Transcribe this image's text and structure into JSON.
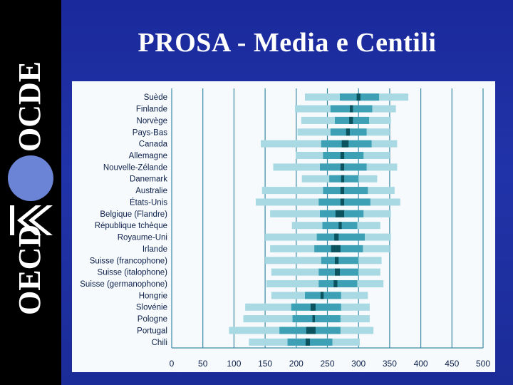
{
  "title": "PROSA - Media e Centili",
  "logo": {
    "top_word": "OCDE",
    "bottom_word": "OECD"
  },
  "colors": {
    "background": "#2133a8",
    "side_band": "#000000",
    "panel": "#f7fafc",
    "grid": "#3a8aa6",
    "p5_p95": "#a9d9e3",
    "p25_p75": "#3da0b5",
    "mean_ci": "#0c5360"
  },
  "chart_data": {
    "type": "bar",
    "orientation": "horizontal",
    "title": "",
    "xlabel": "",
    "ylabel": "",
    "xlim": [
      0,
      500
    ],
    "xticks": [
      0,
      50,
      100,
      150,
      200,
      250,
      300,
      350,
      400,
      450,
      500
    ],
    "grid": true,
    "categories": [
      "Suède",
      "Finlande",
      "Norvège",
      "Pays-Bas",
      "Canada",
      "Allemagne",
      "Nouvelle-Zélande",
      "Danemark",
      "Australie",
      "États-Unis",
      "Belgique (Flandre)",
      "République tchèque",
      "Royaume-Uni",
      "Irlande",
      "Suisse (francophone)",
      "Suisse (italophone)",
      "Suisse (germanophone)",
      "Hongrie",
      "Slovénie",
      "Pologne",
      "Portugal",
      "Chili"
    ],
    "percentiles": [
      {
        "p5": 214,
        "p25": 270,
        "mean_low": 297,
        "mean_high": 303,
        "p75": 333,
        "p95": 380
      },
      {
        "p5": 198,
        "p25": 255,
        "mean_low": 286,
        "mean_high": 291,
        "p75": 322,
        "p95": 360
      },
      {
        "p5": 208,
        "p25": 262,
        "mean_low": 285,
        "mean_high": 291,
        "p75": 317,
        "p95": 352
      },
      {
        "p5": 202,
        "p25": 255,
        "mean_low": 280,
        "mean_high": 286,
        "p75": 313,
        "p95": 350
      },
      {
        "p5": 143,
        "p25": 240,
        "mean_low": 273,
        "mean_high": 284,
        "p75": 321,
        "p95": 362
      },
      {
        "p5": 199,
        "p25": 243,
        "mean_low": 271,
        "mean_high": 277,
        "p75": 308,
        "p95": 350
      },
      {
        "p5": 163,
        "p25": 238,
        "mean_low": 271,
        "mean_high": 277,
        "p75": 313,
        "p95": 362
      },
      {
        "p5": 209,
        "p25": 253,
        "mean_low": 272,
        "mean_high": 277,
        "p75": 300,
        "p95": 330
      },
      {
        "p5": 145,
        "p25": 243,
        "mean_low": 271,
        "mean_high": 277,
        "p75": 315,
        "p95": 358
      },
      {
        "p5": 135,
        "p25": 236,
        "mean_low": 271,
        "mean_high": 277,
        "p75": 319,
        "p95": 367
      },
      {
        "p5": 158,
        "p25": 238,
        "mean_low": 263,
        "mean_high": 277,
        "p75": 308,
        "p95": 352
      },
      {
        "p5": 193,
        "p25": 242,
        "mean_low": 268,
        "mean_high": 273,
        "p75": 298,
        "p95": 335
      },
      {
        "p5": 150,
        "p25": 233,
        "mean_low": 261,
        "mean_high": 268,
        "p75": 310,
        "p95": 352
      },
      {
        "p5": 158,
        "p25": 229,
        "mean_low": 256,
        "mean_high": 271,
        "p75": 307,
        "p95": 350
      },
      {
        "p5": 150,
        "p25": 240,
        "mean_low": 262,
        "mean_high": 268,
        "p75": 300,
        "p95": 337
      },
      {
        "p5": 160,
        "p25": 236,
        "mean_low": 262,
        "mean_high": 270,
        "p75": 300,
        "p95": 335
      },
      {
        "p5": 152,
        "p25": 236,
        "mean_low": 260,
        "mean_high": 266,
        "p75": 298,
        "p95": 340
      },
      {
        "p5": 160,
        "p25": 214,
        "mean_low": 239,
        "mean_high": 244,
        "p75": 272,
        "p95": 315
      },
      {
        "p5": 118,
        "p25": 192,
        "mean_low": 223,
        "mean_high": 231,
        "p75": 272,
        "p95": 318
      },
      {
        "p5": 115,
        "p25": 194,
        "mean_low": 226,
        "mean_high": 230,
        "p75": 271,
        "p95": 318
      },
      {
        "p5": 92,
        "p25": 173,
        "mean_low": 216,
        "mean_high": 231,
        "p75": 271,
        "p95": 324
      },
      {
        "p5": 124,
        "p25": 186,
        "mean_low": 215,
        "mean_high": 222,
        "p75": 258,
        "p95": 302
      }
    ]
  }
}
